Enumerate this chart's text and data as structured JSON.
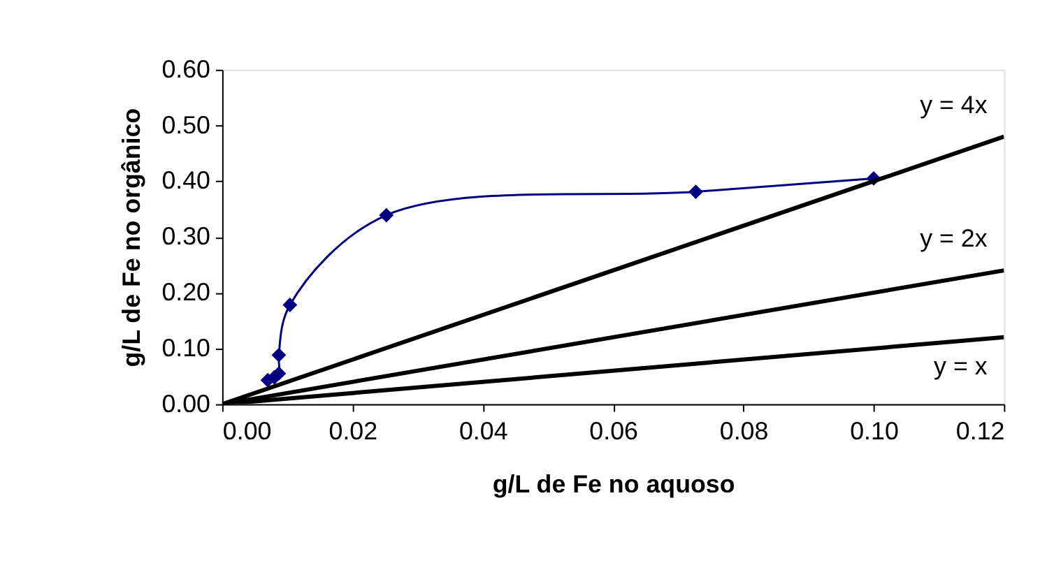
{
  "chart_data": {
    "type": "line",
    "xlabel": "g/L de Fe no aquoso",
    "ylabel": "g/L de Fe no orgânico",
    "series": [
      {
        "color": "#000080",
        "marker": "diamond",
        "x": [
          0.007,
          0.008,
          0.0087,
          0.0087,
          0.0104,
          0.0252,
          0.0727,
          0.1
        ],
        "values": [
          0.043,
          0.048,
          0.055,
          0.088,
          0.178,
          0.339,
          0.381,
          0.405
        ]
      },
      {
        "color": "#000000",
        "marker": "none",
        "x": [
          0,
          0.12
        ],
        "values": [
          0,
          0.48
        ]
      },
      {
        "color": "#000000",
        "marker": "none",
        "x": [
          0,
          0.12
        ],
        "values": [
          0,
          0.24
        ]
      },
      {
        "color": "#000000",
        "marker": "none",
        "x": [
          0,
          0.12
        ],
        "values": [
          0,
          0.12
        ]
      }
    ],
    "xlim": [
      0,
      0.12
    ],
    "xticks": [
      {
        "value": 0,
        "label": "0.00"
      },
      {
        "value": 0.02,
        "label": "0.02"
      },
      {
        "value": 0.04,
        "label": "0.04"
      },
      {
        "value": 0.06,
        "label": "0.06"
      },
      {
        "value": 0.08,
        "label": "0.08"
      },
      {
        "value": 0.1,
        "label": "0.10"
      },
      {
        "value": 0.12,
        "label": "0.12"
      }
    ],
    "ylim": [
      0,
      0.6
    ],
    "yticks": [
      {
        "value": 0,
        "label": "0.00"
      },
      {
        "value": 0.1,
        "label": "0.10"
      },
      {
        "value": 0.2,
        "label": "0.20"
      },
      {
        "value": 0.3,
        "label": "0.30"
      },
      {
        "value": 0.4,
        "label": "0.40"
      },
      {
        "value": 0.5,
        "label": "0.50"
      },
      {
        "value": 0.6,
        "label": "0.60"
      }
    ],
    "annotations": [
      "y = 4x",
      "y = 2x",
      "y = x"
    ],
    "grid": false
  }
}
